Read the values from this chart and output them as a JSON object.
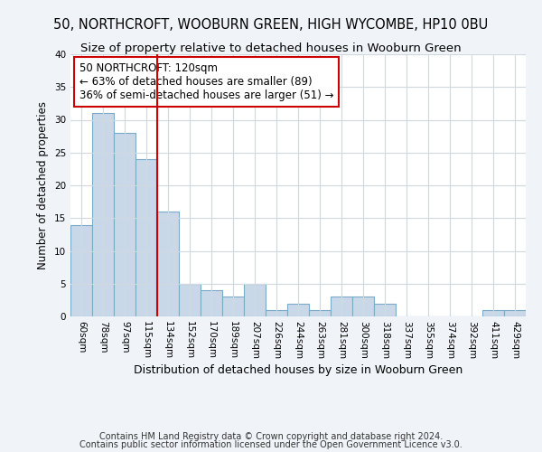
{
  "title1": "50, NORTHCROFT, WOOBURN GREEN, HIGH WYCOMBE, HP10 0BU",
  "title2": "Size of property relative to detached houses in Wooburn Green",
  "xlabel": "Distribution of detached houses by size in Wooburn Green",
  "ylabel": "Number of detached properties",
  "bar_labels": [
    "60sqm",
    "78sqm",
    "97sqm",
    "115sqm",
    "134sqm",
    "152sqm",
    "170sqm",
    "189sqm",
    "207sqm",
    "226sqm",
    "244sqm",
    "263sqm",
    "281sqm",
    "300sqm",
    "318sqm",
    "337sqm",
    "355sqm",
    "374sqm",
    "392sqm",
    "411sqm",
    "429sqm"
  ],
  "bar_values": [
    14,
    31,
    28,
    24,
    16,
    5,
    4,
    3,
    5,
    1,
    2,
    1,
    3,
    3,
    2,
    0,
    0,
    0,
    0,
    1,
    1
  ],
  "bar_color": "#c8d8e8",
  "bar_edge_color": "#7aaac8",
  "vline_x": 3.5,
  "vline_color": "#cc0000",
  "annotation_text": "50 NORTHCROFT: 120sqm\n← 63% of detached houses are smaller (89)\n36% of semi-detached houses are larger (51) →",
  "annotation_box_edge": "#cc0000",
  "ylim": [
    0,
    40
  ],
  "yticks": [
    0,
    5,
    10,
    15,
    20,
    25,
    30,
    35,
    40
  ],
  "footnote1": "Contains HM Land Registry data © Crown copyright and database right 2024.",
  "footnote2": "Contains public sector information licensed under the Open Government Licence v3.0.",
  "background_color": "#f0f4f8",
  "plot_background_color": "#ffffff",
  "grid_color": "#d0d8e0",
  "title1_fontsize": 10.5,
  "title2_fontsize": 9.5,
  "xlabel_fontsize": 9,
  "ylabel_fontsize": 8.5,
  "tick_fontsize": 7.5,
  "annot_fontsize": 8.5,
  "footnote_fontsize": 7
}
